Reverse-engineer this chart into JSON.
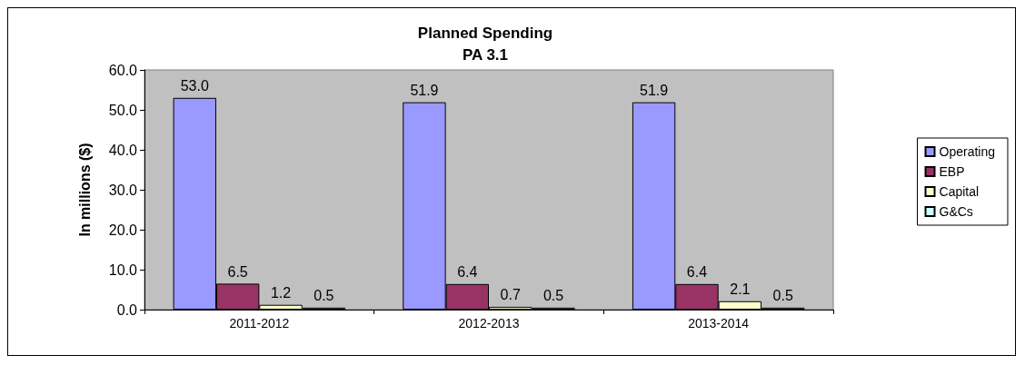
{
  "chart_data": {
    "type": "bar",
    "title": "Planned Spending\nPA 3.1",
    "ylabel": "In millions ($)",
    "categories": [
      "2011-2012",
      "2012-2013",
      "2013-2014"
    ],
    "series": [
      {
        "name": "Operating",
        "color": "#9999ff",
        "values": [
          53.0,
          51.9,
          51.9
        ],
        "value_labels": [
          "53.0",
          "51.9",
          "51.9"
        ]
      },
      {
        "name": "EBP",
        "color": "#993366",
        "values": [
          6.5,
          6.4,
          6.4
        ],
        "value_labels": [
          "6.5",
          "6.4",
          "6.4"
        ]
      },
      {
        "name": "Capital",
        "color": "#ffffcc",
        "values": [
          1.2,
          0.7,
          2.1
        ],
        "value_labels": [
          "1.2",
          "0.7",
          "2.1"
        ]
      },
      {
        "name": "G&Cs",
        "color": "#ccffff",
        "values": [
          0.5,
          0.5,
          0.5
        ],
        "value_labels": [
          "0.5",
          "0.5",
          "0.5"
        ]
      }
    ],
    "ylim": [
      0,
      60
    ],
    "yticks": [
      {
        "value": 0,
        "label": "0.0"
      },
      {
        "value": 10,
        "label": "10.0"
      },
      {
        "value": 20,
        "label": "20.0"
      },
      {
        "value": 30,
        "label": "30.0"
      },
      {
        "value": 40,
        "label": "40.0"
      },
      {
        "value": 50,
        "label": "50.0"
      },
      {
        "value": 60,
        "label": "60.0"
      }
    ],
    "legend": "right"
  }
}
